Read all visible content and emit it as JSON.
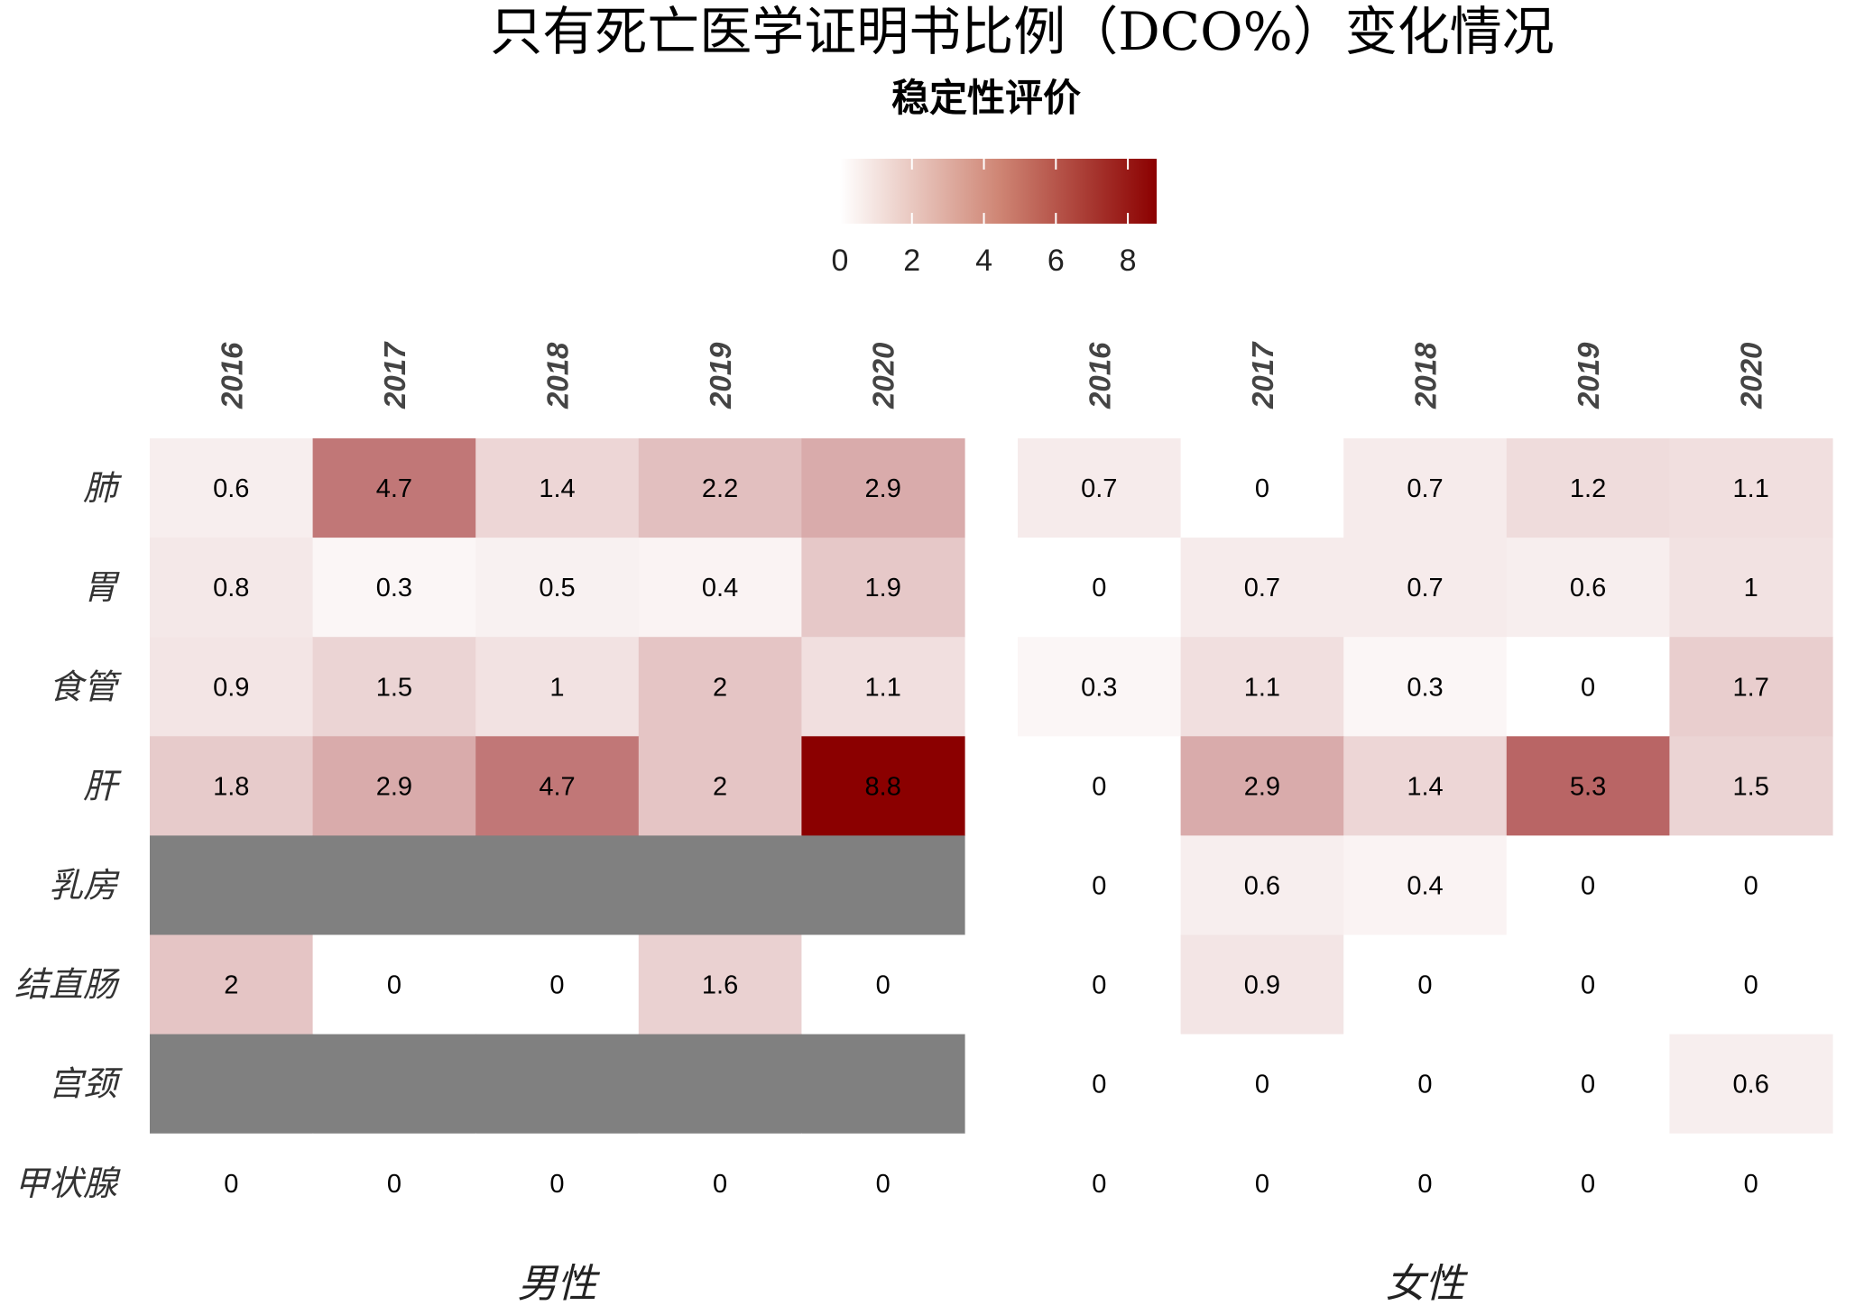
{
  "chart_data": {
    "type": "heatmap",
    "title": "只有死亡医学证明书比例（DCO%）变化情况",
    "legend": {
      "title": "稳定性评价",
      "ticks": [
        "0",
        "2",
        "4",
        "6",
        "8"
      ],
      "range": [
        0,
        8.8
      ],
      "color_low": "#ffffff",
      "color_high": "#8b0000",
      "na_color": "#808080",
      "placement": "top"
    },
    "rows": [
      "肺",
      "胃",
      "食管",
      "肝",
      "乳房",
      "结直肠",
      "宫颈",
      "甲状腺"
    ],
    "panels": [
      {
        "name": "男性",
        "columns": [
          "2016",
          "2017",
          "2018",
          "2019",
          "2020"
        ],
        "values": [
          [
            0.6,
            4.7,
            1.4,
            2.2,
            2.9
          ],
          [
            0.8,
            0.3,
            0.5,
            0.4,
            1.9
          ],
          [
            0.9,
            1.5,
            1,
            2,
            1.1
          ],
          [
            1.8,
            2.9,
            4.7,
            2,
            8.8
          ],
          [
            null,
            null,
            null,
            null,
            null
          ],
          [
            2,
            0,
            0,
            1.6,
            0
          ],
          [
            null,
            null,
            null,
            null,
            null
          ],
          [
            0,
            0,
            0,
            0,
            0
          ]
        ]
      },
      {
        "name": "女性",
        "columns": [
          "2016",
          "2017",
          "2018",
          "2019",
          "2020"
        ],
        "values": [
          [
            0.7,
            0,
            0.7,
            1.2,
            1.1
          ],
          [
            0,
            0.7,
            0.7,
            0.6,
            1
          ],
          [
            0.3,
            1.1,
            0.3,
            0,
            1.7
          ],
          [
            0,
            2.9,
            1.4,
            5.3,
            1.5
          ],
          [
            0,
            0.6,
            0.4,
            0,
            0
          ],
          [
            0,
            0.9,
            0,
            0,
            0
          ],
          [
            0,
            0,
            0,
            0,
            0.6
          ],
          [
            0,
            0,
            0,
            0,
            0
          ]
        ]
      }
    ]
  }
}
